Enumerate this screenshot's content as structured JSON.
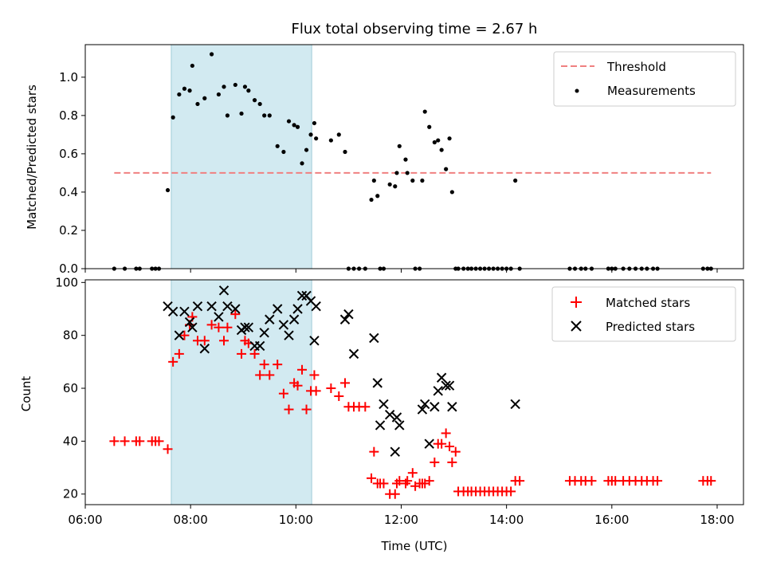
{
  "chart_data": [
    {
      "type": "scatter",
      "title": "Flux total observing time = 2.67 h",
      "xlabel": "",
      "ylabel": "Matched/Predicted stars",
      "xlim": [
        "06:00",
        "18:30"
      ],
      "ylim": [
        0,
        1.17
      ],
      "x_ticks": [
        "06:00",
        "08:00",
        "10:00",
        "12:00",
        "14:00",
        "16:00",
        "18:00"
      ],
      "y_ticks": [
        "0.0",
        "0.2",
        "0.4",
        "0.6",
        "0.8",
        "1.0"
      ],
      "shaded_span": [
        "07:38",
        "10:18"
      ],
      "grid": false,
      "legend": "top-right",
      "threshold": {
        "name": "Threshold",
        "y": 0.5,
        "x": [
          "06:33",
          "17:53"
        ],
        "color": "#f08080"
      },
      "series": [
        {
          "name": "Measurements",
          "color": "#000000",
          "x": [
            "06:33",
            "06:45",
            "06:58",
            "07:02",
            "07:16",
            "07:20",
            "07:24",
            "07:34",
            "07:40",
            "07:47",
            "07:53",
            "07:59",
            "08:02",
            "08:08",
            "08:16",
            "08:24",
            "08:32",
            "08:38",
            "08:42",
            "08:51",
            "08:58",
            "09:02",
            "09:06",
            "09:13",
            "09:19",
            "09:24",
            "09:30",
            "09:39",
            "09:46",
            "09:52",
            "09:58",
            "10:02",
            "10:07",
            "10:12",
            "10:17",
            "10:21",
            "10:23",
            "10:40",
            "10:49",
            "10:56",
            "11:00",
            "11:06",
            "11:12",
            "11:19",
            "11:26",
            "11:29",
            "11:33",
            "11:36",
            "11:40",
            "11:47",
            "11:53",
            "11:55",
            "11:58",
            "12:05",
            "12:07",
            "12:13",
            "12:16",
            "12:21",
            "12:24",
            "12:27",
            "12:32",
            "12:38",
            "12:42",
            "12:46",
            "12:51",
            "12:55",
            "12:58",
            "13:02",
            "13:05",
            "13:11",
            "13:16",
            "13:20",
            "13:25",
            "13:30",
            "13:35",
            "13:40",
            "13:45",
            "13:50",
            "13:55",
            "14:00",
            "14:05",
            "14:10",
            "14:15",
            "15:12",
            "15:18",
            "15:25",
            "15:30",
            "15:37",
            "15:56",
            "16:00",
            "16:04",
            "16:13",
            "16:20",
            "16:27",
            "16:34",
            "16:40",
            "16:47",
            "16:52",
            "17:44",
            "17:49",
            "17:53"
          ],
          "y": [
            0,
            0,
            0,
            0,
            0,
            0,
            0,
            0.41,
            0.79,
            0.91,
            0.94,
            0.93,
            1.06,
            0.86,
            0.89,
            1.12,
            0.91,
            0.95,
            0.8,
            0.96,
            0.81,
            0.95,
            0.93,
            0.88,
            0.86,
            0.8,
            0.8,
            0.64,
            0.61,
            0.77,
            0.75,
            0.74,
            0.55,
            0.62,
            0.7,
            0.76,
            0.68,
            0.67,
            0.7,
            0.61,
            0,
            0,
            0,
            0,
            0.36,
            0.46,
            0.38,
            0,
            0,
            0.44,
            0.43,
            0.5,
            0.64,
            0.57,
            0.5,
            0.46,
            0,
            0,
            0.46,
            0.82,
            0.74,
            0.66,
            0.67,
            0.62,
            0.52,
            0.68,
            0.4,
            0,
            0,
            0,
            0,
            0,
            0,
            0,
            0,
            0,
            0,
            0,
            0,
            0,
            0,
            0.46,
            0,
            0,
            0,
            0,
            0,
            0,
            0,
            0,
            0,
            0,
            0,
            0,
            0,
            0,
            0,
            0,
            0,
            0,
            0
          ]
        }
      ]
    },
    {
      "type": "scatter",
      "title": "",
      "xlabel": "Time (UTC)",
      "ylabel": "Count",
      "xlim": [
        "06:00",
        "18:30"
      ],
      "ylim": [
        16,
        101
      ],
      "x_ticks": [
        "06:00",
        "08:00",
        "10:00",
        "12:00",
        "14:00",
        "16:00",
        "18:00"
      ],
      "y_ticks": [
        "20",
        "40",
        "60",
        "80",
        "100"
      ],
      "shaded_span": [
        "07:38",
        "10:18"
      ],
      "grid": false,
      "legend": "top-right",
      "series": [
        {
          "name": "Matched stars",
          "color": "#ff0000",
          "x": [
            "06:33",
            "06:45",
            "06:58",
            "07:02",
            "07:16",
            "07:20",
            "07:24",
            "07:34",
            "07:40",
            "07:47",
            "07:53",
            "07:59",
            "08:02",
            "08:08",
            "08:16",
            "08:24",
            "08:32",
            "08:38",
            "08:42",
            "08:51",
            "08:58",
            "09:02",
            "09:06",
            "09:13",
            "09:19",
            "09:24",
            "09:30",
            "09:39",
            "09:46",
            "09:52",
            "09:58",
            "10:02",
            "10:07",
            "10:12",
            "10:17",
            "10:21",
            "10:23",
            "10:40",
            "10:49",
            "10:56",
            "11:00",
            "11:06",
            "11:12",
            "11:19",
            "11:26",
            "11:29",
            "11:33",
            "11:36",
            "11:40",
            "11:47",
            "11:53",
            "11:55",
            "11:58",
            "12:05",
            "12:07",
            "12:13",
            "12:16",
            "12:21",
            "12:24",
            "12:27",
            "12:32",
            "12:38",
            "12:42",
            "12:46",
            "12:51",
            "12:55",
            "12:58",
            "13:02",
            "13:05",
            "13:11",
            "13:16",
            "13:20",
            "13:25",
            "13:30",
            "13:35",
            "13:40",
            "13:45",
            "13:50",
            "13:55",
            "14:00",
            "14:05",
            "14:10",
            "14:15",
            "15:12",
            "15:18",
            "15:25",
            "15:30",
            "15:37",
            "15:56",
            "16:00",
            "16:04",
            "16:13",
            "16:20",
            "16:27",
            "16:34",
            "16:40",
            "16:47",
            "16:52",
            "17:44",
            "17:49",
            "17:53"
          ],
          "y": [
            40,
            40,
            40,
            40,
            40,
            40,
            40,
            37,
            70,
            73,
            80,
            84,
            87,
            78,
            78,
            84,
            83,
            78,
            83,
            88,
            73,
            78,
            77,
            73,
            65,
            69,
            65,
            69,
            58,
            52,
            62,
            61,
            67,
            52,
            59,
            65,
            59,
            60,
            57,
            62,
            53,
            53,
            53,
            53,
            26,
            36,
            24,
            24,
            24,
            20,
            20,
            24,
            25,
            24,
            25,
            28,
            23,
            24,
            24,
            24,
            25,
            32,
            39,
            39,
            43,
            38,
            32,
            36,
            21,
            21,
            21,
            21,
            21,
            21,
            21,
            21,
            21,
            21,
            21,
            21,
            21,
            25,
            25,
            25,
            25,
            25,
            25,
            25,
            25,
            25,
            25,
            25,
            25,
            25,
            25,
            25,
            25,
            25,
            25,
            25,
            25
          ]
        },
        {
          "name": "Predicted stars",
          "color": "#000000",
          "x": [
            "07:34",
            "07:40",
            "07:47",
            "07:53",
            "07:59",
            "08:02",
            "08:08",
            "08:16",
            "08:24",
            "08:32",
            "08:38",
            "08:42",
            "08:51",
            "08:58",
            "09:02",
            "09:06",
            "09:13",
            "09:19",
            "09:24",
            "09:30",
            "09:39",
            "09:46",
            "09:52",
            "09:58",
            "10:02",
            "10:07",
            "10:12",
            "10:17",
            "10:21",
            "10:23",
            "10:56",
            "11:00",
            "11:06",
            "11:29",
            "11:33",
            "11:36",
            "11:40",
            "11:47",
            "11:53",
            "11:55",
            "11:58",
            "12:24",
            "12:27",
            "12:32",
            "12:38",
            "12:42",
            "12:46",
            "12:51",
            "12:55",
            "12:58",
            "14:10"
          ],
          "y": [
            91,
            89,
            80,
            89,
            85,
            83,
            91,
            75,
            91,
            87,
            97,
            91,
            90,
            82,
            83,
            83,
            76,
            76,
            81,
            86,
            90,
            84,
            80,
            86,
            90,
            95,
            95,
            93,
            78,
            91,
            86,
            88,
            73,
            79,
            62,
            46,
            54,
            50,
            36,
            49,
            46,
            52,
            54,
            39,
            53,
            59,
            64,
            61,
            61,
            53,
            54
          ]
        }
      ]
    }
  ]
}
